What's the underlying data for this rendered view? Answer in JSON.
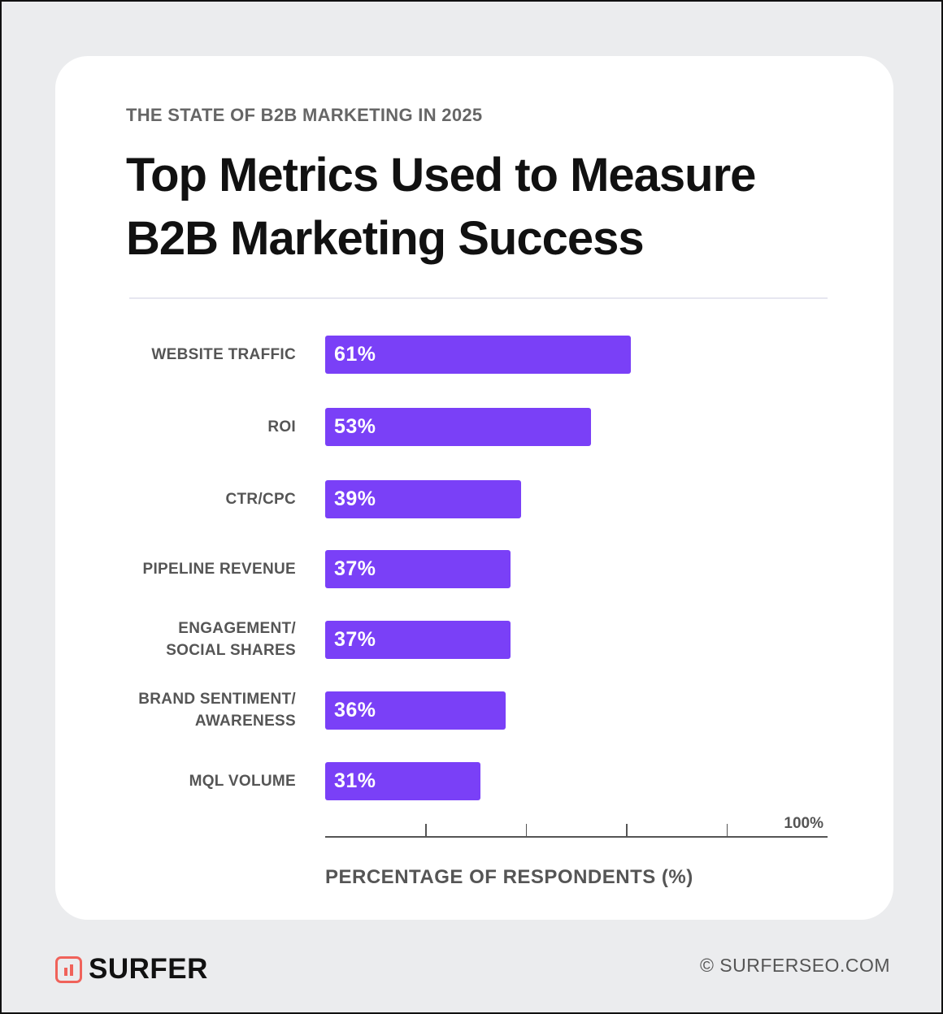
{
  "header": {
    "kicker": "THE STATE OF B2B MARKETING IN 2025",
    "title": "Top Metrics Used to Measure B2B Marketing Success"
  },
  "chart_data": {
    "type": "bar",
    "orientation": "horizontal",
    "categories": [
      "WEBSITE TRAFFIC",
      "ROI",
      "CTR/CPC",
      "PIPELINE REVENUE",
      "ENGAGEMENT/\nSOCIAL SHARES",
      "BRAND SENTIMENT/\nAWARENESS",
      "MQL VOLUME"
    ],
    "values": [
      61,
      53,
      39,
      37,
      37,
      36,
      31
    ],
    "data_labels": [
      "61%",
      "53%",
      "39%",
      "37%",
      "37%",
      "36%",
      "31%"
    ],
    "xlabel": "PERCENTAGE OF RESPONDENTS (%)",
    "xlim": [
      0,
      100
    ],
    "x_ticks": [
      20,
      40,
      60,
      80,
      100
    ],
    "x_tick_label_max": "100%",
    "grid": false,
    "bar_color": "#7a40f7"
  },
  "footer": {
    "brand": "SURFER",
    "site": "© SURFERSEO.COM",
    "brand_color": "#f0625a"
  }
}
